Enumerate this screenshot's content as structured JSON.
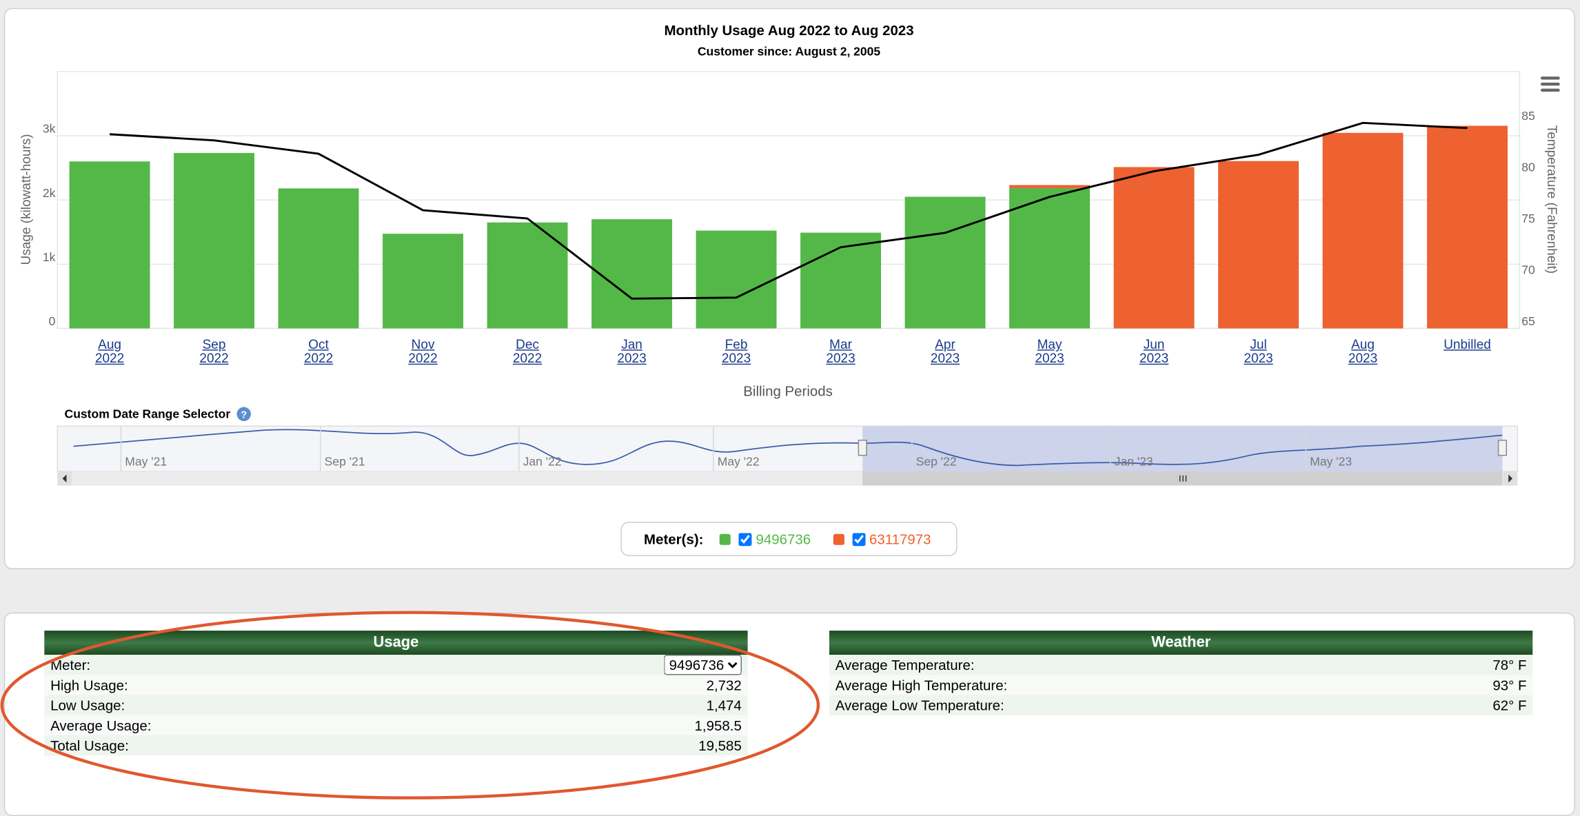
{
  "chart_data": {
    "type": "bar",
    "stacked": true,
    "title": "Monthly Usage Aug 2022 to Aug 2023",
    "subtitle": "Customer since: August 2, 2005",
    "x_label": "Billing Periods",
    "y_label": "Usage (kilowatt-hours)",
    "y2_label": "Temperature (Fahrenheit)",
    "categories": [
      "Aug 2022",
      "Sep 2022",
      "Oct 2022",
      "Nov 2022",
      "Dec 2022",
      "Jan 2023",
      "Feb 2023",
      "Mar 2023",
      "Apr 2023",
      "May 2023",
      "Jun 2023",
      "Jul 2023",
      "Aug 2023",
      "Unbilled"
    ],
    "series": [
      {
        "name": "9496736",
        "color": "#54b848",
        "values": [
          2600,
          2732,
          2180,
          1474,
          1650,
          1700,
          1523,
          1491,
          2050,
          2185,
          null,
          null,
          null,
          null
        ]
      },
      {
        "name": "63117973",
        "color": "#ee6131",
        "values": [
          null,
          null,
          null,
          null,
          null,
          null,
          null,
          null,
          null,
          47,
          2512,
          2606,
          3045,
          3155
        ]
      },
      {
        "type": "line",
        "axis": "y2",
        "color": "#000000",
        "values": [
          83.9,
          83.3,
          82.0,
          76.5,
          75.7,
          67.9,
          68.0,
          72.9,
          74.3,
          77.8,
          80.3,
          81.9,
          85.0,
          84.5
        ]
      }
    ],
    "ylim": [
      0,
      4000
    ],
    "yticks": [
      0,
      {
        "value": 1000,
        "label": "1k"
      },
      {
        "value": 2000,
        "label": "2k"
      },
      {
        "value": 3000,
        "label": "3k"
      }
    ],
    "y2lim": [
      65,
      90
    ],
    "y2ticks": [
      65,
      70,
      75,
      80,
      85
    ],
    "grid": true,
    "legend_title": "Meter(s):"
  },
  "navigator": {
    "title": "Custom Date Range Selector",
    "labels": [
      "May '21",
      "Sep '21",
      "Jan '22",
      "May '22",
      "Sep '22",
      "Jan '23",
      "May '23"
    ]
  },
  "usage": {
    "title": "Usage",
    "rows": [
      [
        "Meter:",
        "9496736"
      ],
      [
        "High Usage:",
        "2,732"
      ],
      [
        "Low Usage:",
        "1,474"
      ],
      [
        "Average Usage:",
        "1,958.5"
      ],
      [
        "Total Usage:",
        "19,585"
      ]
    ]
  },
  "weather": {
    "title": "Weather",
    "rows": [
      [
        "Average Temperature:",
        "78° F"
      ],
      [
        "Average High Temperature:",
        "93° F"
      ],
      [
        "Average Low Temperature:",
        "62° F"
      ]
    ]
  }
}
